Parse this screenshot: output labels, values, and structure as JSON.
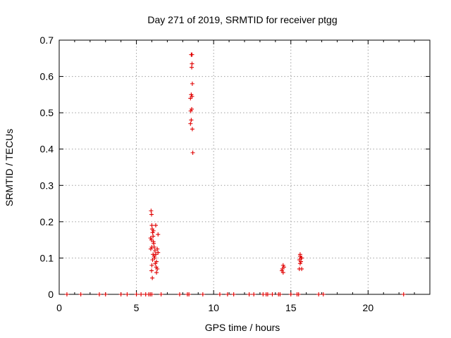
{
  "chart_data": {
    "type": "scatter",
    "title": "Day 271 of 2019, SRMTID for receiver ptgg",
    "xlabel": "GPS time / hours",
    "ylabel": "SRMTID / TECUs",
    "xlim": [
      0,
      24
    ],
    "ylim": [
      0,
      0.7
    ],
    "xticks": [
      0,
      5,
      10,
      15,
      20
    ],
    "yticks": [
      0,
      0.1,
      0.2,
      0.3,
      0.4,
      0.5,
      0.6,
      0.7
    ],
    "xtick_labels": [
      "0",
      "5",
      "10",
      "15",
      "20"
    ],
    "ytick_labels": [
      "0",
      "0.1",
      "0.2",
      "0.3",
      "0.4",
      "0.5",
      "0.6",
      "0.7"
    ],
    "grid": true,
    "legend": "none",
    "series": [
      {
        "color": "#e00000",
        "marker": "plus",
        "points": [
          [
            0.5,
            0
          ],
          [
            1.4,
            0
          ],
          [
            2.6,
            0
          ],
          [
            3.0,
            0
          ],
          [
            4.0,
            0
          ],
          [
            4.4,
            0
          ],
          [
            5.0,
            0
          ],
          [
            5.3,
            0
          ],
          [
            5.6,
            0
          ],
          [
            5.8,
            0
          ],
          [
            5.9,
            0
          ],
          [
            6.0,
            0
          ],
          [
            6.6,
            0
          ],
          [
            7.8,
            0
          ],
          [
            8.3,
            0
          ],
          [
            8.4,
            0
          ],
          [
            9.3,
            0
          ],
          [
            10.4,
            0
          ],
          [
            10.9,
            0
          ],
          [
            11.3,
            0
          ],
          [
            12.3,
            0
          ],
          [
            12.6,
            0
          ],
          [
            13.2,
            0
          ],
          [
            13.4,
            0
          ],
          [
            13.5,
            0
          ],
          [
            13.8,
            0
          ],
          [
            14.2,
            0
          ],
          [
            14.3,
            0
          ],
          [
            15.0,
            0
          ],
          [
            15.4,
            0
          ],
          [
            15.5,
            0
          ],
          [
            16.8,
            0
          ],
          [
            17.1,
            0
          ],
          [
            22.3,
            0
          ],
          [
            5.95,
            0.23
          ],
          [
            5.98,
            0.22
          ],
          [
            6.0,
            0.19
          ],
          [
            6.02,
            0.18
          ],
          [
            6.05,
            0.17
          ],
          [
            6.08,
            0.16
          ],
          [
            5.92,
            0.155
          ],
          [
            5.97,
            0.15
          ],
          [
            6.1,
            0.145
          ],
          [
            6.12,
            0.14
          ],
          [
            6.15,
            0.13
          ],
          [
            6.0,
            0.13
          ],
          [
            5.93,
            0.125
          ],
          [
            6.2,
            0.12
          ],
          [
            6.25,
            0.11
          ],
          [
            6.18,
            0.1
          ],
          [
            6.05,
            0.095
          ],
          [
            6.3,
            0.09
          ],
          [
            6.22,
            0.085
          ],
          [
            6.0,
            0.08
          ],
          [
            6.28,
            0.075
          ],
          [
            6.35,
            0.07
          ],
          [
            5.98,
            0.065
          ],
          [
            6.3,
            0.06
          ],
          [
            6.03,
            0.045
          ],
          [
            6.25,
            0.19
          ],
          [
            6.1,
            0.175
          ],
          [
            6.4,
            0.165
          ],
          [
            6.35,
            0.125
          ],
          [
            6.15,
            0.105
          ],
          [
            6.4,
            0.115
          ],
          [
            6.08,
            0.11
          ],
          [
            8.6,
            0.66
          ],
          [
            8.55,
            0.66
          ],
          [
            8.6,
            0.635
          ],
          [
            8.58,
            0.625
          ],
          [
            8.62,
            0.58
          ],
          [
            8.55,
            0.55
          ],
          [
            8.6,
            0.545
          ],
          [
            8.5,
            0.54
          ],
          [
            8.58,
            0.51
          ],
          [
            8.52,
            0.505
          ],
          [
            8.55,
            0.48
          ],
          [
            8.5,
            0.47
          ],
          [
            8.62,
            0.455
          ],
          [
            8.65,
            0.39
          ],
          [
            14.5,
            0.08
          ],
          [
            14.45,
            0.07
          ],
          [
            14.55,
            0.075
          ],
          [
            14.5,
            0.06
          ],
          [
            14.42,
            0.065
          ],
          [
            15.6,
            0.11
          ],
          [
            15.65,
            0.1
          ],
          [
            15.55,
            0.095
          ],
          [
            15.7,
            0.1
          ],
          [
            15.6,
            0.085
          ],
          [
            15.55,
            0.07
          ],
          [
            15.7,
            0.07
          ],
          [
            15.6,
            0.105
          ],
          [
            15.65,
            0.09
          ]
        ]
      }
    ]
  }
}
